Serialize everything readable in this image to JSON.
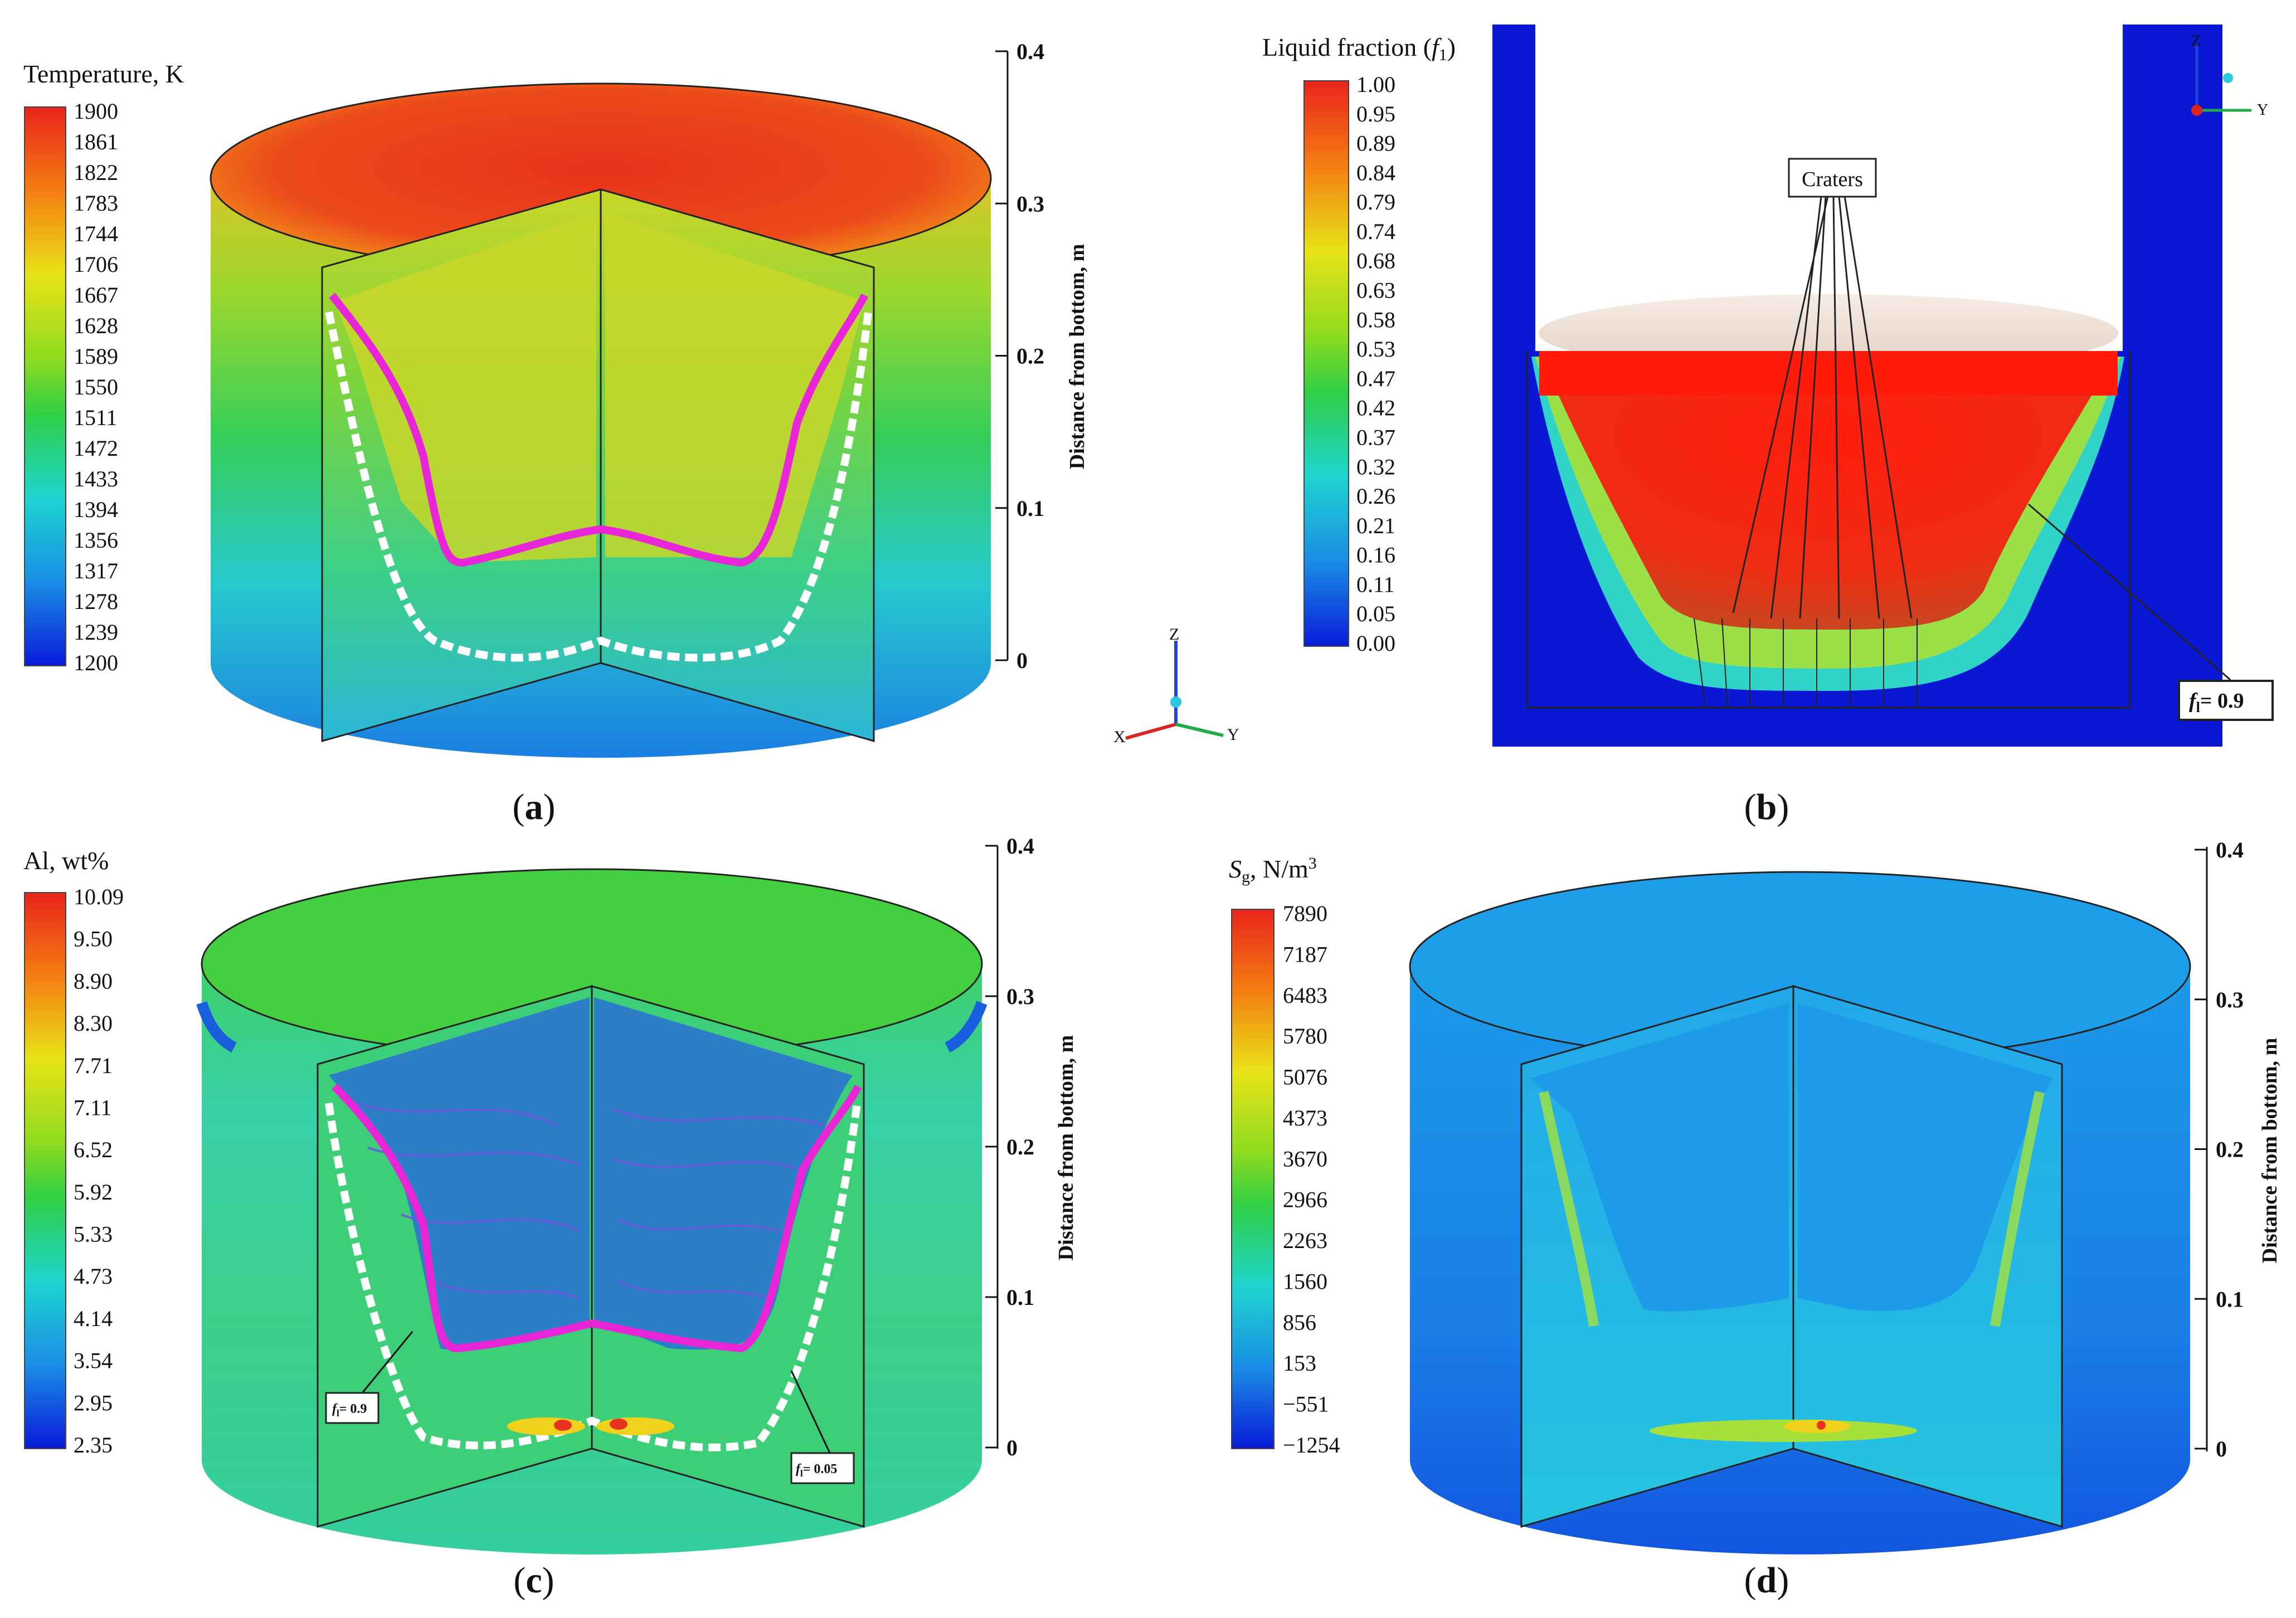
{
  "panels": {
    "a": {
      "caption_open": "(",
      "caption_letter": "a",
      "caption_close": ")",
      "legend_title": "Temperature, K",
      "legend_ticks": [
        "1900",
        "1861",
        "1822",
        "1783",
        "1744",
        "1706",
        "1667",
        "1628",
        "1589",
        "1550",
        "1511",
        "1472",
        "1433",
        "1394",
        "1356",
        "1317",
        "1278",
        "1239",
        "1200"
      ],
      "axis_label": "Distance from bottom, m",
      "axis_ticks": [
        "0.4",
        "0.3",
        "0.2",
        "0.1",
        "0"
      ],
      "triad": {
        "z": "Z",
        "x": "X",
        "y": "Y"
      }
    },
    "b": {
      "caption_open": "(",
      "caption_letter": "b",
      "caption_close": ")",
      "legend_title_pre": "Liquid fraction (",
      "legend_title_sym": "f",
      "legend_title_sub": "1",
      "legend_title_post": ")",
      "legend_ticks": [
        "1.00",
        "0.95",
        "0.89",
        "0.84",
        "0.79",
        "0.74",
        "0.68",
        "0.63",
        "0.58",
        "0.53",
        "0.47",
        "0.42",
        "0.37",
        "0.32",
        "0.26",
        "0.21",
        "0.16",
        "0.11",
        "0.05",
        "0.00"
      ],
      "craters_label": "Craters",
      "fl_label_sym": "f",
      "fl_label_sub": "l",
      "fl_label_val": "= 0.9",
      "triad": {
        "z": "Z",
        "y": "Y"
      }
    },
    "c": {
      "caption_open": "(",
      "caption_letter": "c",
      "caption_close": ")",
      "legend_title": "Al, wt%",
      "legend_ticks": [
        "10.09",
        "9.50",
        "8.90",
        "8.30",
        "7.71",
        "7.11",
        "6.52",
        "5.92",
        "5.33",
        "4.73",
        "4.14",
        "3.54",
        "2.95",
        "2.35"
      ],
      "axis_label": "Distance from bottom, m",
      "axis_ticks": [
        "0.4",
        "0.3",
        "0.2",
        "0.1",
        "0"
      ],
      "box1_sym": "f",
      "box1_sub": "l",
      "box1_val": "= 0.9",
      "box2_sym": "f",
      "box2_sub": "l",
      "box2_val": "= 0.05"
    },
    "d": {
      "caption_open": "(",
      "caption_letter": "d",
      "caption_close": ")",
      "legend_title_sym": "S",
      "legend_title_sub": "g",
      "legend_title_unit": ", N/m",
      "legend_title_sup": "3",
      "legend_ticks": [
        "7890",
        "7187",
        "6483",
        "5780",
        "5076",
        "4373",
        "3670",
        "2966",
        "2263",
        "1560",
        "856",
        "153",
        "−551",
        "−1254"
      ],
      "axis_label": "Distance from bottom, m",
      "axis_ticks": [
        "0.4",
        "0.3",
        "0.2",
        "0.1",
        "0"
      ]
    }
  }
}
